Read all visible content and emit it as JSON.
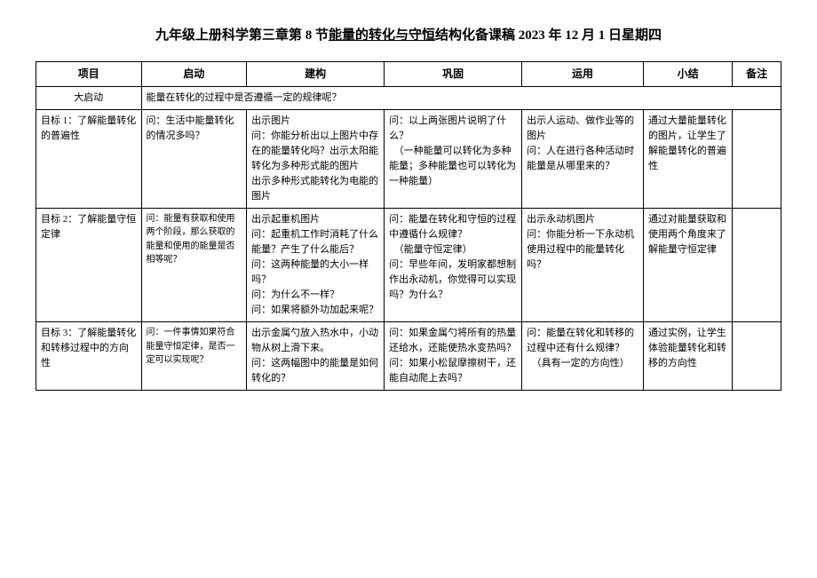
{
  "title_prefix": "九年级上册科学第三章第 8 节",
  "title_underline": "能量的转化与守恒",
  "title_suffix": "结构化备课稿 2023 年 12 月 1 日星期四",
  "headers": {
    "project": "项目",
    "qidong": "启动",
    "jiangou": "建构",
    "gonggu": "巩固",
    "yunyong": "运用",
    "xiaojie": "小结",
    "beizhu": "备注"
  },
  "big_start_label": "大启动",
  "big_start_text": "能量在转化的过程中是否遵循一定的规律呢？",
  "rows": [
    {
      "project": "目标 1：了解能量转化的普遍性",
      "qidong": "问：生活中能量转化的情况多吗？",
      "jiangou": "出示图片\n问：你能分析出以上图片中存在的能量转化吗？出示太阳能转化为多种形式能的图片\n出示多种形式能转化为电能的图片",
      "gonggu": "问：以上两张图片说明了什么？\n　（一种能量可以转化为多种能量；多种能量也可以转化为一种能量）",
      "yunyong": "出示人运动、做作业等的图片\n问：人在进行各种活动时能量是从哪里来的？",
      "xiaojie": "通过大量能量转化的图片，让学生了解能量转化的普遍性",
      "beizhu": ""
    },
    {
      "project": "目标 2：了解能量守恒定律",
      "qidong_small": true,
      "qidong": "问：能量有获取和使用两个阶段，那么获取的能量和使用的能量是否相等呢？",
      "jiangou": "出示起重机图片\n问：起重机工作时消耗了什么能量？产生了什么能后？\n问：这两种能量的大小一样吗？\n问：为什么不一样？\n问：如果将额外功加起来呢？",
      "gonggu": "问：能量在转化和守恒的过程中遵循什么规律？\n　（能量守恒定律）\n问：早些年间，发明家都想制作出永动机，你觉得可以实现吗？为什么？",
      "yunyong": "出示永动机图片\n问：你能分析一下永动机使用过程中的能量转化吗？",
      "xiaojie": "通过对能量获取和使用两个角度来了解能量守恒定律",
      "beizhu": ""
    },
    {
      "project": "目标 3：了解能量转化和转移过程中的方向性",
      "qidong_small": true,
      "qidong": "问：一件事情如果符合能量守恒定律，是否一定可以实现呢？",
      "jiangou": "出示金属勺放入热水中，小动物从树上滑下来。\n问：这两幅图中的能量是如何转化的？",
      "gonggu": "问：如果金属勺将所有的热量还给水，还能使热水变热吗？\n问：如果小松鼠摩擦树干，还能自动爬上去吗？",
      "yunyong": "问：能量在转化和转移的过程中还有什么规律？\n　（具有一定的方向性）",
      "xiaojie": "通过实例，让学生体验能量转化和转移的方向性",
      "beizhu": ""
    }
  ]
}
